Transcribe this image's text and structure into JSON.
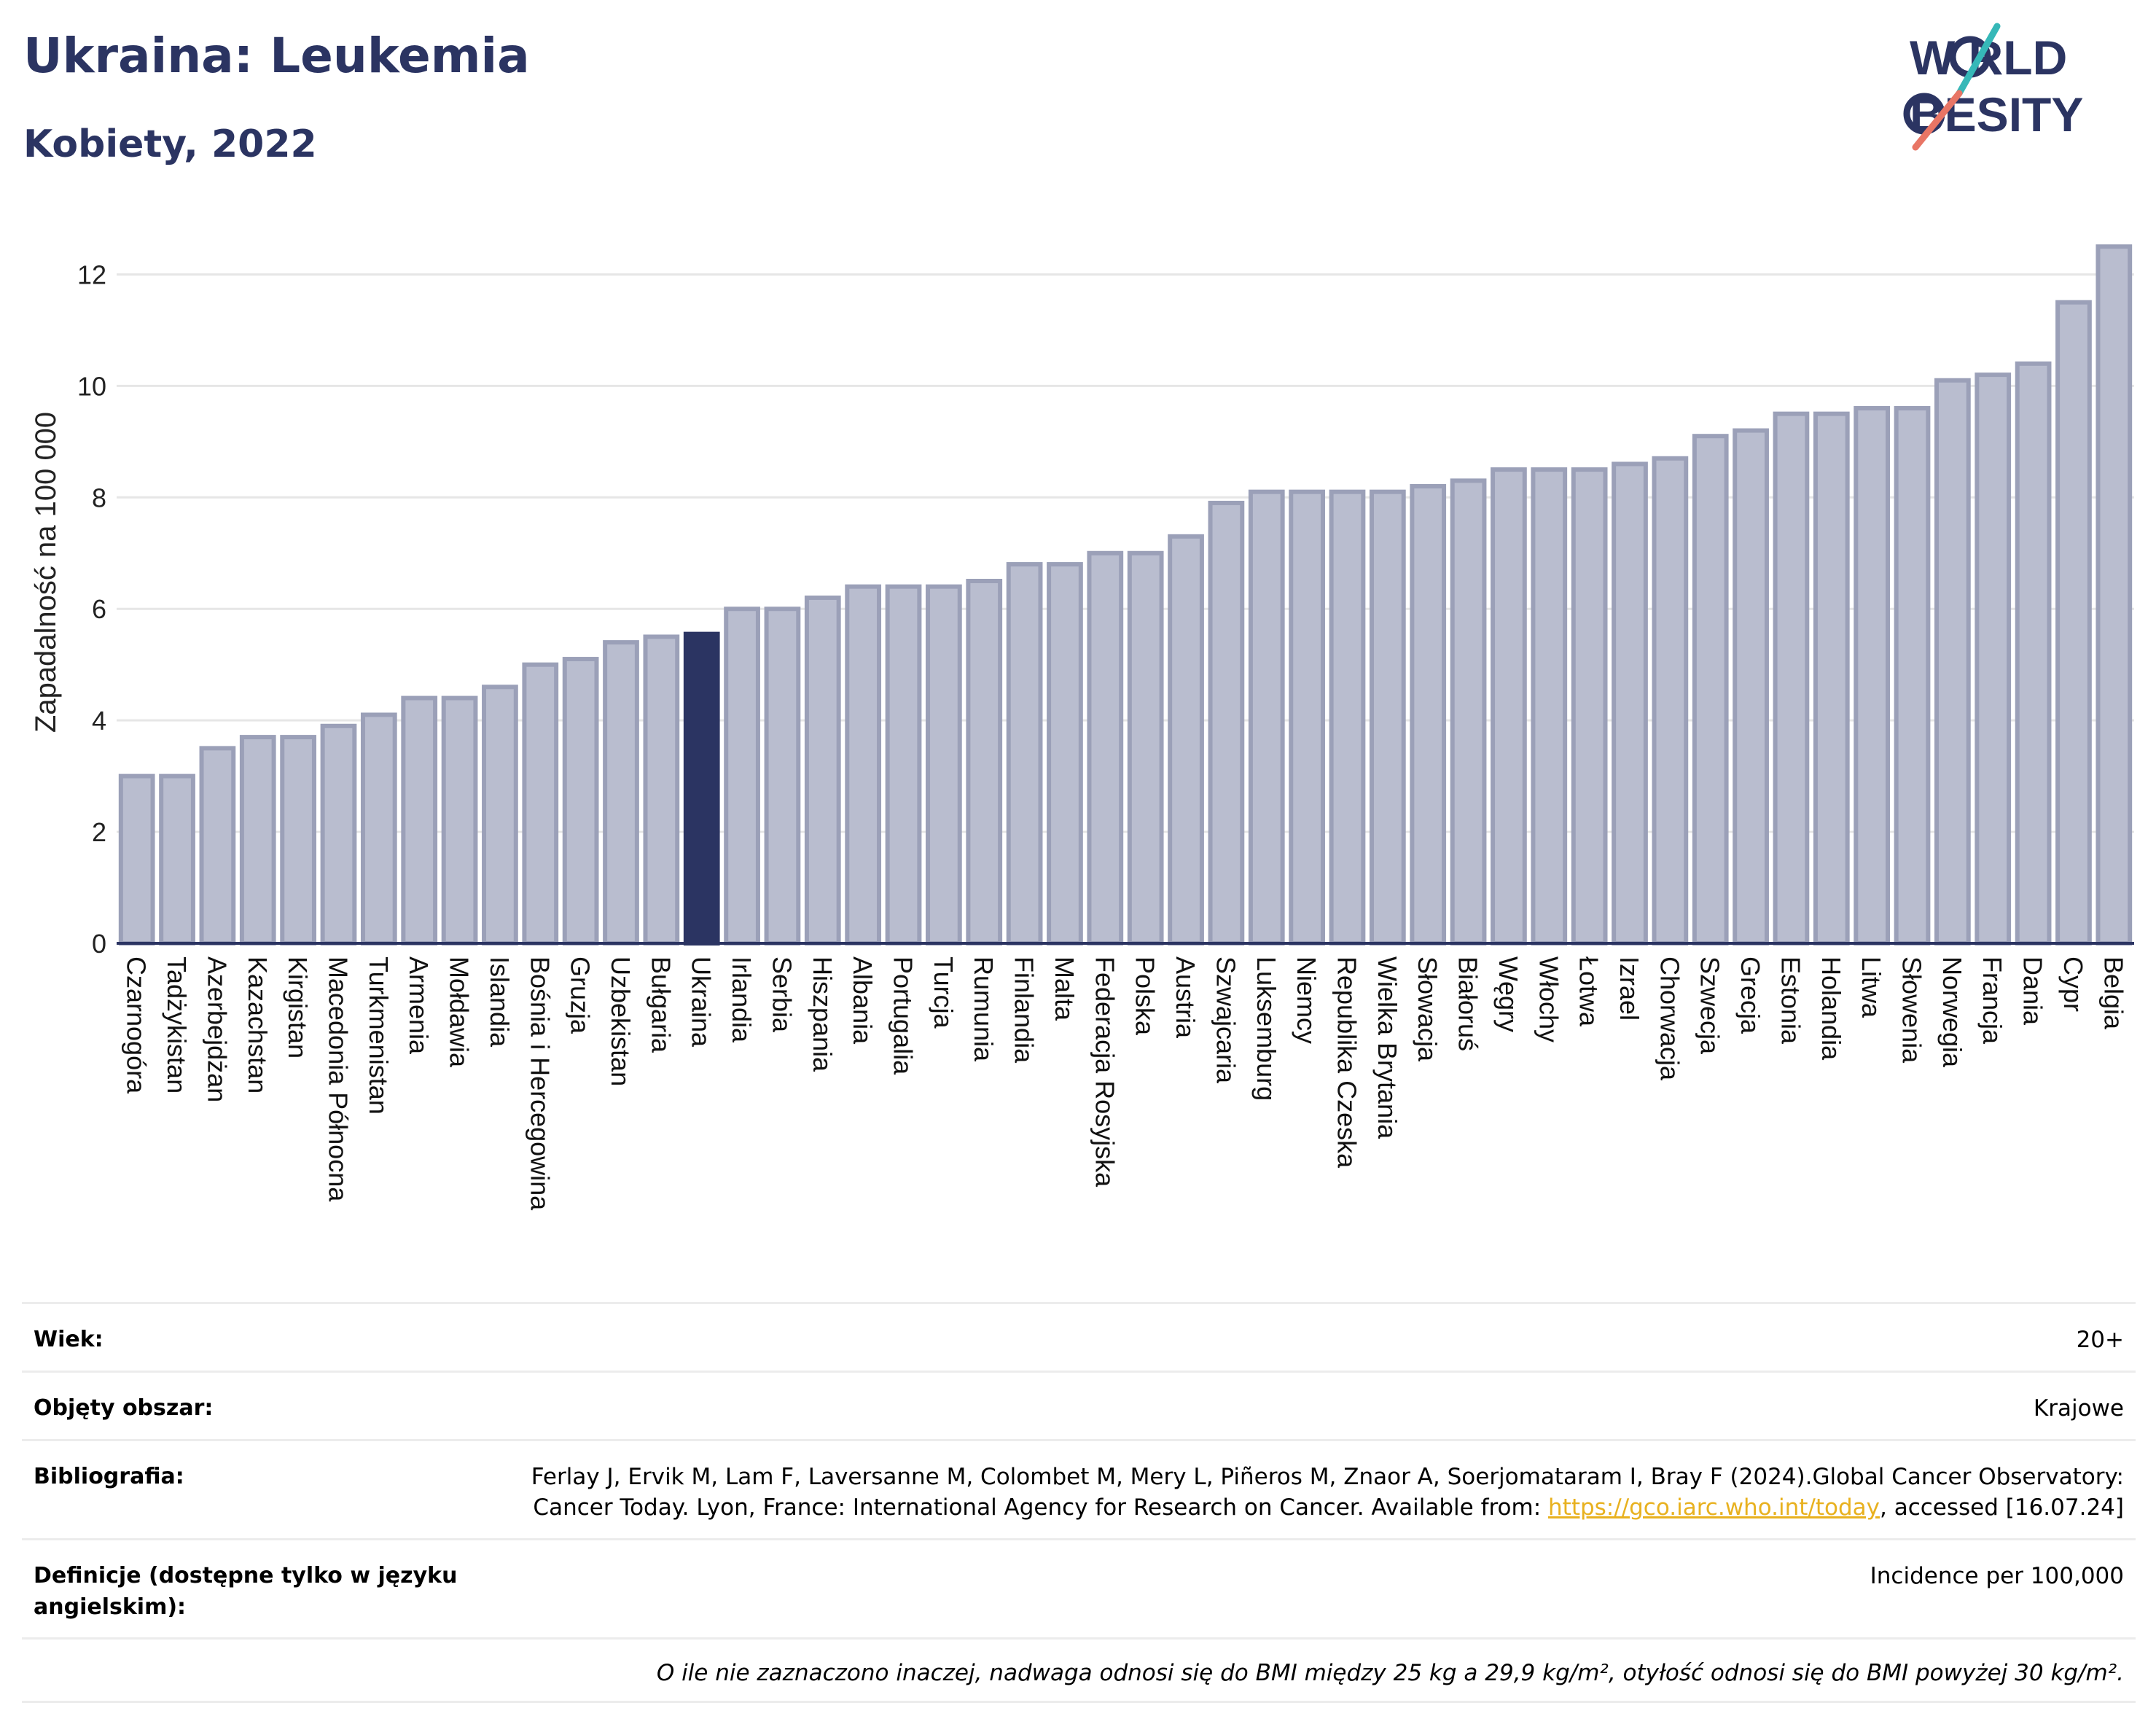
{
  "header": {
    "title": "Ukraina: Leukemia",
    "subtitle": "Kobiety, 2022"
  },
  "logo": {
    "line1": "W RLD",
    "line2": "BESITY",
    "alt": "WORLD OBESITY"
  },
  "colors": {
    "bar": "#b9bdcf",
    "bar_stroke": "#9ba0b8",
    "highlight": "#2b3462",
    "title": "#2b3462",
    "grid": "#e6e6e6",
    "link": "#e8b11f",
    "logo_teal": "#36b8b8",
    "logo_coral": "#e87565"
  },
  "chart_data": {
    "type": "bar",
    "title": "Ukraina: Leukemia",
    "subtitle": "Kobiety, 2022",
    "ylabel": "Zapadalność na 100 000",
    "xlabel": "",
    "ylim": [
      0,
      13
    ],
    "yticks": [
      0,
      2,
      4,
      6,
      8,
      10,
      12
    ],
    "grid": true,
    "highlight": "Ukraina",
    "categories": [
      "Czarnogóra",
      "Tadżykistan",
      "Azerbejdżan",
      "Kazachstan",
      "Kirgistan",
      "Macedonia Północna",
      "Turkmenistan",
      "Armenia",
      "Mołdawia",
      "Islandia",
      "Bośnia i Hercegowina",
      "Gruzja",
      "Uzbekistan",
      "Bułgaria",
      "Ukraina",
      "Irlandia",
      "Serbia",
      "Hiszpania",
      "Albania",
      "Portugalia",
      "Turcja",
      "Rumunia",
      "Finlandia",
      "Malta",
      "Federacja Rosyjska",
      "Polska",
      "Austria",
      "Szwajcaria",
      "Luksemburg",
      "Niemcy",
      "Republika Czeska",
      "Wielka Brytania",
      "Słowacja",
      "Białoruś",
      "Węgry",
      "Włochy",
      "Łotwa",
      "Izrael",
      "Chorwacja",
      "Szwecja",
      "Grecja",
      "Estonia",
      "Holandia",
      "Litwa",
      "Słowenia",
      "Norwegia",
      "Francja",
      "Dania",
      "Cypr",
      "Belgia"
    ],
    "values": [
      3.0,
      3.0,
      3.5,
      3.7,
      3.7,
      3.9,
      4.1,
      4.4,
      4.4,
      4.6,
      5.0,
      5.1,
      5.4,
      5.5,
      5.55,
      6.0,
      6.0,
      6.2,
      6.4,
      6.4,
      6.4,
      6.5,
      6.8,
      6.8,
      7.0,
      7.0,
      7.3,
      7.9,
      8.1,
      8.1,
      8.1,
      8.1,
      8.2,
      8.3,
      8.5,
      8.5,
      8.5,
      8.6,
      8.7,
      9.1,
      9.2,
      9.5,
      9.5,
      9.6,
      9.6,
      10.1,
      10.2,
      10.4,
      11.5,
      12.5
    ]
  },
  "footer": {
    "rows": [
      {
        "label": "Wiek:",
        "value": "20+"
      },
      {
        "label": "Objęty obszar:",
        "value": "Krajowe"
      },
      {
        "label": "Bibliografia:",
        "value_pre": "Ferlay J, Ervik M, Lam F, Laversanne M, Colombet M, Mery L, Piñeros M, Znaor A, Soerjomataram I, Bray F (2024).Global Cancer Observatory: Cancer Today. Lyon, France: International Agency for Research on Cancer. Available from: ",
        "link": "https://gco.iarc.who.int/today",
        "value_post": ", accessed [16.07.24]"
      },
      {
        "label": "Definicje (dostępne tylko w języku angielskim):",
        "value": "Incidence per 100,000"
      }
    ],
    "note": "O ile nie zaznaczono inaczej, nadwaga odnosi się do BMI między 25 kg a 29,9 kg/m², otyłość odnosi się do BMI powyżej 30 kg/m²."
  }
}
